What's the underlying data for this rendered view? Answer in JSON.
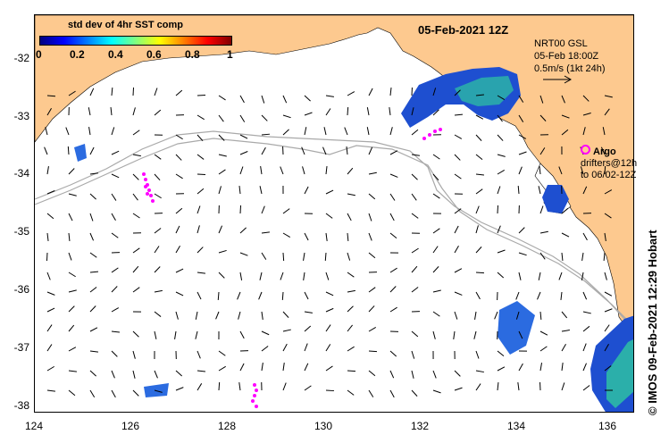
{
  "map": {
    "date_title": "05-Feb-2021 12Z",
    "x_ticks": [
      "124",
      "126",
      "128",
      "130",
      "132",
      "134",
      "136"
    ],
    "y_ticks": [
      "-32",
      "-33",
      "-34",
      "-35",
      "-36",
      "-37",
      "-38"
    ],
    "land_color": "#fdc98f",
    "contour_color": "#a9a9a9"
  },
  "legend": {
    "title": "std dev of 4hr SST comp",
    "tick_labels": [
      "0",
      "0.2",
      "0.4",
      "0.6",
      "0.8",
      "1"
    ],
    "range": [
      0,
      1
    ]
  },
  "model_info": {
    "line1": "NRT00 GSL",
    "line2": "05-Feb 18:00Z",
    "line3": "0.5m/s (1kt 24h)"
  },
  "argo": {
    "label": "Argo",
    "drifters_line1": "drifters@12h",
    "drifters_line2": "to 06/02-12Z",
    "color": "#ff00ff"
  },
  "credit": "© IMOS 09-Feb-2021 12:29 Hobart"
}
